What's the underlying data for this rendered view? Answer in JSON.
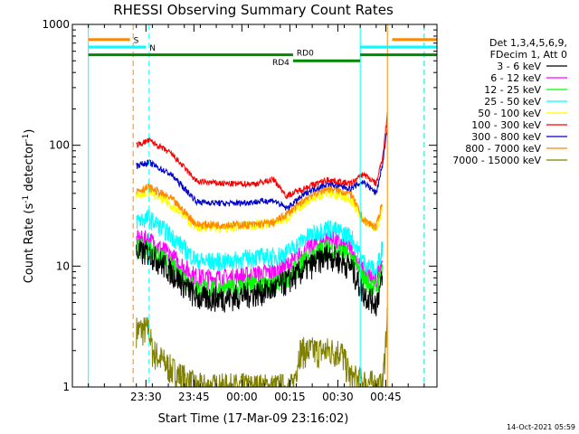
{
  "chart_data": {
    "type": "line",
    "title": "RHESSI Observing Summary Count Rates",
    "xlabel": "Start Time (17-Mar-09 23:16:02)",
    "ylabel_main": "Count Rate (s",
    "ylabel_sup1": "-1",
    "ylabel_mid": " detector",
    "ylabel_sup2": "-1",
    "ylabel_end": ")",
    "yscale": "log",
    "ylim": [
      1,
      1000
    ],
    "xlim_min": [
      -4,
      53
    ],
    "y_ticks": [
      {
        "v": 1,
        "label": "1"
      },
      {
        "v": 10,
        "label": "10"
      },
      {
        "v": 100,
        "label": "100"
      },
      {
        "v": 1000,
        "label": "1000"
      }
    ],
    "x_ticks": [
      {
        "t": 14,
        "label": "23:30"
      },
      {
        "t": 29,
        "label": "23:45"
      },
      {
        "t": 44,
        "label": "00:00"
      },
      {
        "t": 59,
        "label": "00:15"
      },
      {
        "t": 74,
        "label": "00:30"
      },
      {
        "t": 89,
        "label": "00:45"
      }
    ],
    "legend_header": [
      "Det 1,3,4,5,6,9,",
      "FDecim 1, Att 0"
    ],
    "legend_placement": "right",
    "series": [
      {
        "name": "3 - 6 keV",
        "color": "#000000",
        "base": [
          [
            11,
            13
          ],
          [
            15,
            13
          ],
          [
            22,
            9
          ],
          [
            30,
            5.5
          ],
          [
            40,
            5.5
          ],
          [
            48,
            6
          ],
          [
            54,
            6.5
          ],
          [
            58,
            7.5
          ],
          [
            65,
            10
          ],
          [
            71,
            12.5
          ],
          [
            78,
            10
          ],
          [
            82,
            6
          ],
          [
            86,
            5
          ],
          [
            88,
            8
          ]
        ],
        "noise": 0.25
      },
      {
        "name": "6 - 12 keV",
        "color": "#ff00ff",
        "base": [
          [
            11,
            16.5
          ],
          [
            15,
            16.5
          ],
          [
            22,
            12
          ],
          [
            30,
            8
          ],
          [
            40,
            8
          ],
          [
            48,
            8.5
          ],
          [
            54,
            9
          ],
          [
            58,
            10
          ],
          [
            65,
            14
          ],
          [
            71,
            17
          ],
          [
            78,
            14
          ],
          [
            82,
            9
          ],
          [
            86,
            7.5
          ],
          [
            88,
            12
          ]
        ],
        "noise": 0.2
      },
      {
        "name": "12 - 25 keV",
        "color": "#00ff00",
        "base": [
          [
            11,
            14
          ],
          [
            15,
            14
          ],
          [
            22,
            10
          ],
          [
            30,
            6.5
          ],
          [
            40,
            6.5
          ],
          [
            48,
            7
          ],
          [
            54,
            7
          ],
          [
            58,
            8
          ],
          [
            65,
            12
          ],
          [
            71,
            14.5
          ],
          [
            78,
            12
          ],
          [
            82,
            8
          ],
          [
            86,
            6.5
          ],
          [
            88,
            10
          ]
        ],
        "noise": 0.2
      },
      {
        "name": "25 - 50 keV",
        "color": "#00ffff",
        "base": [
          [
            11,
            24
          ],
          [
            15,
            25
          ],
          [
            22,
            18
          ],
          [
            30,
            11
          ],
          [
            40,
            11
          ],
          [
            48,
            12
          ],
          [
            54,
            12
          ],
          [
            58,
            13
          ],
          [
            65,
            18
          ],
          [
            71,
            21
          ],
          [
            78,
            18
          ],
          [
            82,
            11
          ],
          [
            86,
            9
          ],
          [
            88,
            15
          ]
        ],
        "noise": 0.18
      },
      {
        "name": "50 - 100 keV",
        "color": "#ffff00",
        "base": [
          [
            11,
            40
          ],
          [
            15,
            42
          ],
          [
            22,
            32
          ],
          [
            30,
            21
          ],
          [
            40,
            21
          ],
          [
            48,
            22
          ],
          [
            54,
            23
          ],
          [
            58,
            25
          ],
          [
            65,
            36
          ],
          [
            71,
            41
          ],
          [
            78,
            36
          ],
          [
            82,
            24
          ],
          [
            86,
            20
          ],
          [
            88,
            32
          ]
        ],
        "noise": 0.1
      },
      {
        "name": "100 - 300 keV",
        "color": "#ff0000",
        "base": [
          [
            11,
            100
          ],
          [
            15,
            110
          ],
          [
            22,
            85
          ],
          [
            30,
            50
          ],
          [
            40,
            48
          ],
          [
            48,
            48
          ],
          [
            54,
            52
          ],
          [
            58,
            38
          ],
          [
            65,
            46
          ],
          [
            71,
            52
          ],
          [
            78,
            48
          ],
          [
            82,
            58
          ],
          [
            86,
            48
          ],
          [
            88,
            80
          ],
          [
            89.5,
            180
          ]
        ],
        "noise": 0.06
      },
      {
        "name": "300 - 800 keV",
        "color": "#0000cc",
        "base": [
          [
            11,
            68
          ],
          [
            15,
            72
          ],
          [
            22,
            57
          ],
          [
            30,
            34
          ],
          [
            40,
            33
          ],
          [
            48,
            34
          ],
          [
            54,
            35
          ],
          [
            58,
            30
          ],
          [
            65,
            42
          ],
          [
            71,
            48
          ],
          [
            78,
            44
          ],
          [
            82,
            50
          ],
          [
            86,
            40
          ],
          [
            88,
            70
          ],
          [
            89.5,
            140
          ]
        ],
        "noise": 0.06
      },
      {
        "name": "800 - 7000 keV",
        "color": "#ff8800",
        "base": [
          [
            11,
            42
          ],
          [
            15,
            45
          ],
          [
            22,
            36
          ],
          [
            30,
            22
          ],
          [
            40,
            22
          ],
          [
            48,
            22
          ],
          [
            54,
            23
          ],
          [
            58,
            27
          ],
          [
            65,
            38
          ],
          [
            71,
            44
          ],
          [
            78,
            40
          ],
          [
            82,
            24
          ],
          [
            86,
            21
          ],
          [
            88,
            35
          ]
        ],
        "noise": 0.08
      },
      {
        "name": "7000 - 15000 keV",
        "color": "#808000",
        "base": [
          [
            11,
            3
          ],
          [
            15,
            3
          ],
          [
            16,
            2
          ],
          [
            22,
            1.4
          ],
          [
            30,
            1
          ],
          [
            60,
            1
          ],
          [
            62,
            2
          ],
          [
            75,
            2
          ],
          [
            78,
            1.2
          ],
          [
            88,
            1
          ],
          [
            89.5,
            4
          ]
        ],
        "noise": 0.3
      }
    ],
    "annotations": {
      "S": {
        "label": "S",
        "color": "#ff8800",
        "y": 750,
        "x1": -4,
        "x2": 9
      },
      "N": {
        "label": "N",
        "color": "#00ffff",
        "y": 650,
        "x1": -4,
        "x2": 14
      },
      "RD0": {
        "label": "RD0",
        "color": "#008800",
        "y": 560,
        "x1": -4,
        "x2": 60
      },
      "RD4": {
        "label": "RD4",
        "color": "#008800",
        "y": 500,
        "x1": 60,
        "x2": 81
      },
      "RD0b": {
        "color": "#008800",
        "y": 560,
        "x1": 81,
        "x2": 105
      },
      "Nb": {
        "color": "#00ffff",
        "y": 650,
        "x1": 81,
        "x2": 105
      },
      "Sb": {
        "color": "#ff8800",
        "y": 750,
        "x1": 91,
        "x2": 105
      },
      "vlines": [
        {
          "t": -4,
          "color": "#00ffff",
          "dash": false
        },
        {
          "t": 10,
          "color": "#ff8800",
          "dash": true
        },
        {
          "t": 15,
          "color": "#00ffff",
          "dash": true
        },
        {
          "t": 81,
          "color": "#00ffff",
          "dash": false
        },
        {
          "t": 89.5,
          "color": "#ff8800",
          "dash": false
        },
        {
          "t": 101,
          "color": "#ff8800",
          "dash": true
        },
        {
          "t": 101,
          "color": "#00ffff",
          "dash": true
        }
      ]
    }
  },
  "stamp": "14-Oct-2021 05:59"
}
